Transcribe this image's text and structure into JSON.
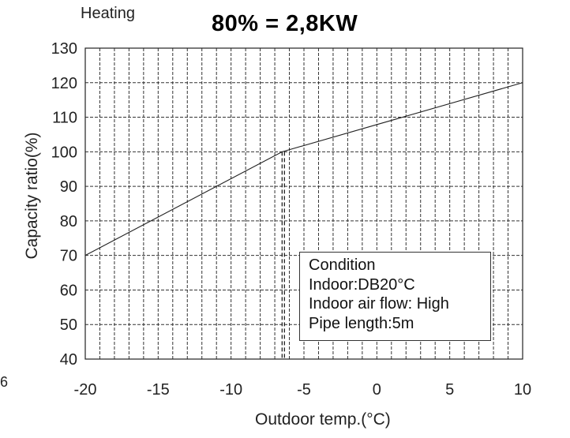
{
  "chart_data": {
    "type": "line",
    "title": "80% = 2,8KW",
    "corner_title": "Heating",
    "xlabel": "Outdoor temp.(°C)",
    "ylabel": "Capacity ratio(%)",
    "xlim": [
      -20,
      10
    ],
    "ylim": [
      40,
      130
    ],
    "xticks": [
      -20,
      -15,
      -10,
      -5,
      0,
      5,
      10
    ],
    "yticks": [
      40,
      50,
      60,
      70,
      80,
      90,
      100,
      110,
      120,
      130
    ],
    "x_minor_step": 1,
    "grid": true,
    "series": [
      {
        "x": [
          -20,
          -6.5,
          10
        ],
        "values": [
          70,
          100,
          120
        ]
      }
    ],
    "reference_marker": {
      "x": -6.5,
      "y": 100,
      "style": "dashed"
    },
    "annotation": {
      "lines": [
        "Condition",
        "Indoor:DB20°C",
        "Indoor air flow: High",
        "Pipe length:5m"
      ],
      "placement": "bottom-right"
    },
    "stray_text": "6"
  }
}
